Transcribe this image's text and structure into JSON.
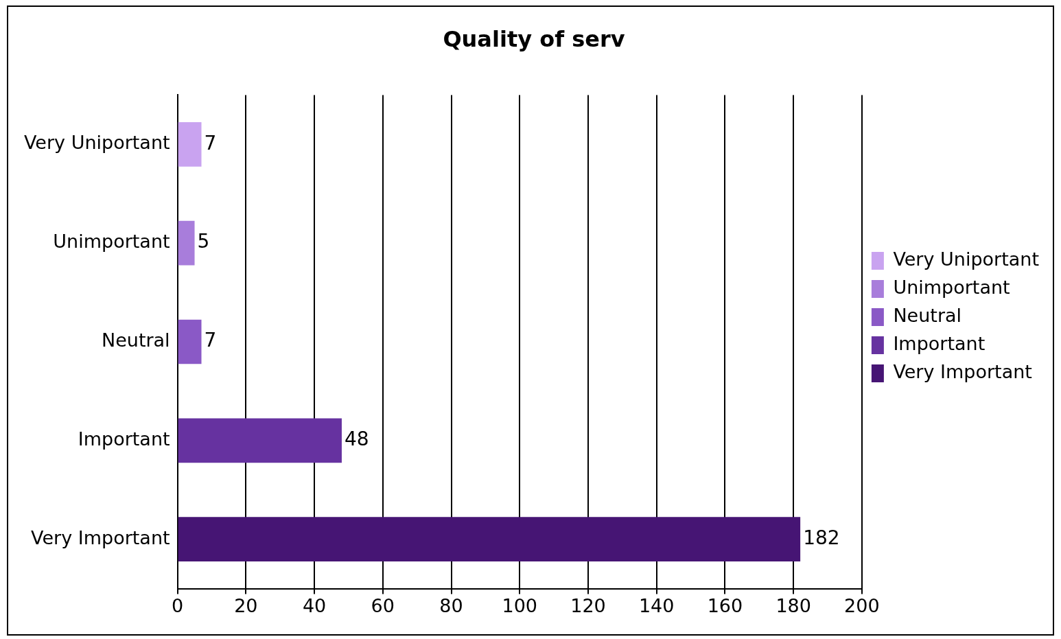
{
  "chart_data": {
    "type": "bar",
    "orientation": "horizontal",
    "stacked": true,
    "title": "Quality of serv",
    "categories": [
      "Very Uniportant",
      "Unimportant",
      "Neutral",
      "Important",
      "Very Important"
    ],
    "series": [
      {
        "name": "Very Uniportant",
        "color": "#c9a3f0",
        "values": [
          7,
          null,
          null,
          null,
          null
        ]
      },
      {
        "name": "Unimportant",
        "color": "#a87ddb",
        "values": [
          null,
          5,
          null,
          null,
          null
        ]
      },
      {
        "name": "Neutral",
        "color": "#8a59c6",
        "values": [
          null,
          null,
          7,
          null,
          null
        ]
      },
      {
        "name": "Important",
        "color": "#6632a0",
        "values": [
          null,
          null,
          null,
          48,
          null
        ]
      },
      {
        "name": "Very Important",
        "color": "#461574",
        "values": [
          null,
          null,
          null,
          null,
          182
        ]
      }
    ],
    "xlim": [
      0,
      200
    ],
    "xticks": [
      0,
      20,
      40,
      60,
      80,
      100,
      120,
      140,
      160,
      180,
      200
    ],
    "grid": "x",
    "legend": "right",
    "data_labels": true
  }
}
